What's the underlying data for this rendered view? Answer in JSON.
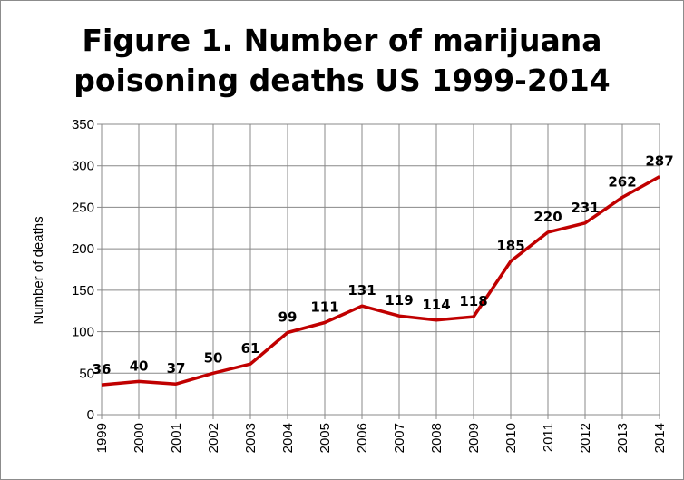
{
  "chart_data": {
    "type": "line",
    "title_line1": "Figure 1. Number of marijuana",
    "title_line2": "poisoning deaths US 1999-2014",
    "xlabel": "",
    "ylabel": "Number of deaths",
    "x": [
      "1999",
      "2000",
      "2001",
      "2002",
      "2003",
      "2004",
      "2005",
      "2006",
      "2007",
      "2008",
      "2009",
      "2010",
      "2011",
      "2012",
      "2013",
      "2014"
    ],
    "series": [
      {
        "values": [
          36,
          40,
          37,
          50,
          61,
          99,
          111,
          131,
          119,
          114,
          118,
          185,
          220,
          231,
          262,
          287
        ]
      }
    ],
    "data_labels": [
      "36",
      "40",
      "37",
      "50",
      "61",
      "99",
      "111",
      "131",
      "119",
      "114",
      "118",
      "185",
      "220",
      "231",
      "262",
      "287"
    ],
    "ylim": [
      0,
      350
    ],
    "yticks": [
      "0",
      "50",
      "100",
      "150",
      "200",
      "250",
      "300",
      "350"
    ],
    "ytick_values": [
      0,
      50,
      100,
      150,
      200,
      250,
      300,
      350
    ],
    "grid": true,
    "legend": "none",
    "colors": {
      "line": "#c00000",
      "grid": "#888888",
      "axis": "#888888"
    }
  }
}
